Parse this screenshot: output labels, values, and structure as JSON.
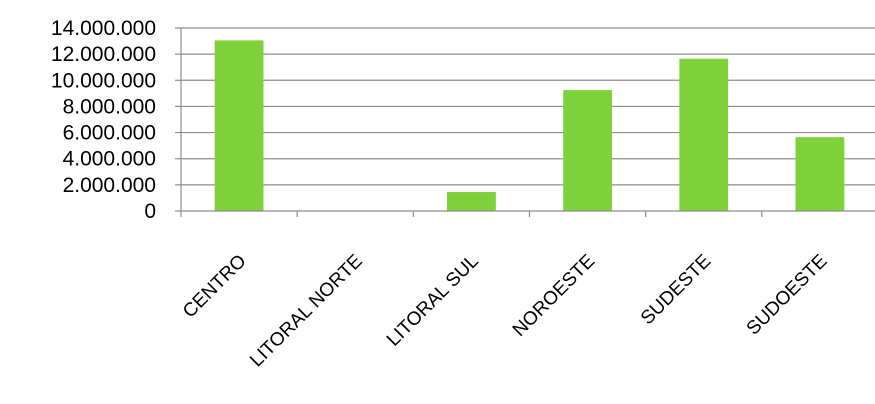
{
  "chart_data": {
    "type": "bar",
    "categories": [
      "CENTRO",
      "LITORAL NORTE",
      "LITORAL SUL",
      "NOROESTE",
      "SUDESTE",
      "SUDOESTE"
    ],
    "values": [
      13050000,
      0,
      1450000,
      9250000,
      11650000,
      5650000
    ],
    "ylim": [
      0,
      14000000
    ],
    "yticks": [
      0,
      2000000,
      4000000,
      6000000,
      8000000,
      10000000,
      12000000,
      14000000
    ],
    "ytick_labels": [
      "0",
      "2.000.000",
      "4.000.000",
      "6.000.000",
      "8.000.000",
      "10.000.000",
      "12.000.000",
      "14.000.000"
    ],
    "grid": true,
    "legend": "none",
    "title": "",
    "xlabel": "",
    "ylabel": "",
    "colors": {
      "bar": "#7FD13B",
      "grid": "#8C8C8C",
      "axis": "#8C8C8C"
    }
  }
}
